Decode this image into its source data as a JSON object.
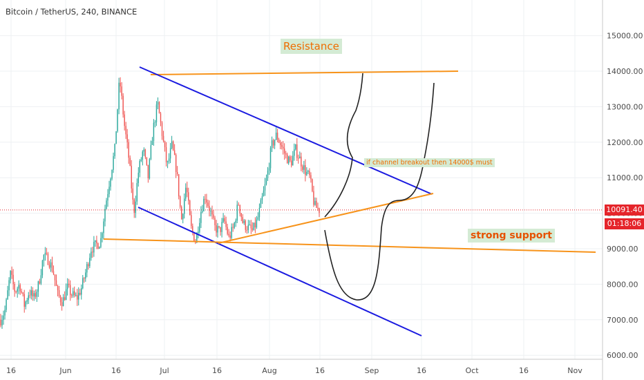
{
  "header": {
    "title": "Bitcoin / TetherUS, 240, BINANCE"
  },
  "chart_data": {
    "type": "candlestick",
    "symbol": "Bitcoin / TetherUS",
    "interval": "240",
    "exchange": "BINANCE",
    "x_ticks": [
      "16",
      "Jun",
      "16",
      "Jul",
      "16",
      "Aug",
      "16",
      "Sep",
      "16",
      "Oct",
      "16",
      "Nov"
    ],
    "y_ticks": [
      "15000.00",
      "14000.00",
      "13000.00",
      "12000.00",
      "11000.00",
      "10000.00",
      "9000.00",
      "8000.00",
      "7000.00",
      "6000.00"
    ],
    "y_range": [
      6000,
      15500
    ],
    "grid": true,
    "last_price": "10091.40",
    "countdown": "01:18:06",
    "price_path": [
      [
        7000,
        7300,
        8300,
        7800,
        8000,
        7400,
        7800,
        7600,
        8000,
        8800,
        8700,
        8400
      ],
      [
        7700,
        7500,
        7900,
        7700,
        7600,
        7900,
        8400,
        9000,
        9100,
        9200,
        10200,
        11000
      ],
      [
        11800,
        13800,
        12500,
        11500,
        10000,
        11200,
        11800,
        11000,
        12300,
        13100,
        12200,
        11300
      ],
      [
        11900,
        11200,
        9800,
        10800,
        9600,
        9200,
        10000,
        10500,
        10100,
        9600,
        9500,
        9800
      ],
      [
        9300,
        9600,
        10300,
        9700,
        9600,
        9500,
        9800,
        10400,
        11000,
        11900,
        12200,
        11900
      ],
      [
        11600,
        11400,
        11800,
        11500,
        11200,
        11000,
        10200,
        10100
      ]
    ],
    "annotations": {
      "resistance": "Resistance",
      "support": "strong support",
      "breakout_note": "if channel breakout then 14000$ must"
    },
    "drawings": {
      "resistance_line": {
        "color": "#f7931a",
        "from": [
          14000
        ],
        "to": [
          13950
        ]
      },
      "channel_upper": {
        "color": "#1a1ae0"
      },
      "channel_lower": {
        "color": "#1a1ae0"
      },
      "ascending_support": {
        "color": "#f7931a"
      },
      "horizontal_support": {
        "color": "#f7931a"
      }
    },
    "colors": {
      "up": "#26a69a",
      "down": "#ef5350",
      "trendline_orange": "#f7931a",
      "channel_blue": "#1a1ae0",
      "price_tag": "#e5252b"
    }
  }
}
